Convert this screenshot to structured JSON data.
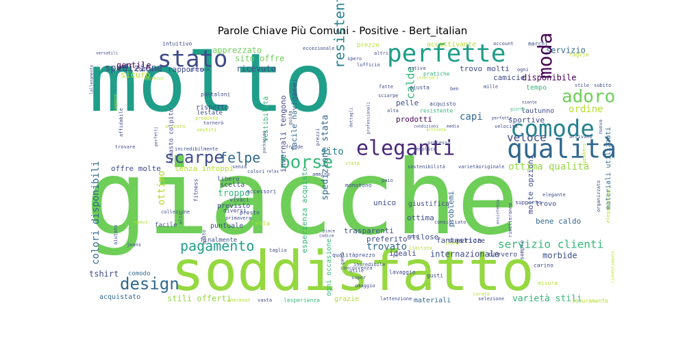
{
  "chart_data": {
    "type": "wordcloud",
    "title": "Parole Chiave Più Comuni - Positive - Bert_italian",
    "background": "#ffffff",
    "colormap": "viridis",
    "words": [
      {
        "text": "molto",
        "color": "#1f9e89"
      },
      {
        "text": "giacche",
        "color": "#6ece58"
      },
      {
        "text": "soddisfatto",
        "color": "#95d840"
      },
      {
        "text": "perfette",
        "color": "#1f9e89"
      },
      {
        "text": "stato",
        "color": "#3e4a89"
      },
      {
        "text": "comode",
        "color": "#26828e"
      },
      {
        "text": "qualità",
        "color": "#31688e"
      },
      {
        "text": "eleganti",
        "color": "#482878"
      },
      {
        "text": "borse",
        "color": "#35b779"
      },
      {
        "text": "scarpe",
        "color": "#3e4a89"
      },
      {
        "text": "felpe",
        "color": "#31688e"
      },
      {
        "text": "moda",
        "color": "#440154"
      },
      {
        "text": "adoro",
        "color": "#6ece58"
      },
      {
        "text": "design",
        "color": "#31688e"
      },
      {
        "text": "pagamento",
        "color": "#1f9e89"
      },
      {
        "text": "resistenti",
        "color": "#26828e"
      },
      {
        "text": "spedizione",
        "color": "#3e4a89"
      },
      {
        "text": "servizio",
        "color": "#31688e"
      },
      {
        "text": "apprezzato",
        "color": "#6ece58"
      },
      {
        "text": "gentile",
        "color": "#440154"
      },
      {
        "text": "rapporto",
        "color": "#3e4a89"
      },
      {
        "text": "sito offre",
        "color": "#6ece58"
      },
      {
        "text": "ricevuto",
        "color": "#3e4a89"
      },
      {
        "text": "capi",
        "color": "#31688e"
      },
      {
        "text": "calde",
        "color": "#35b779"
      },
      {
        "text": "veloce",
        "color": "#3e4a89"
      },
      {
        "text": "servizio clienti",
        "color": "#35b779"
      },
      {
        "text": "ottima qualità",
        "color": "#95d840"
      },
      {
        "text": "colori disponibili",
        "color": "#31688e"
      },
      {
        "text": "trovato",
        "color": "#31688e"
      },
      {
        "text": "sito",
        "color": "#26828e"
      },
      {
        "text": "ottimo",
        "color": "#b5de2b"
      },
      {
        "text": "troppo",
        "color": "#35b779"
      },
      {
        "text": "tshirt",
        "color": "#3e4a89"
      },
      {
        "text": "disponibile",
        "color": "#440154"
      },
      {
        "text": "ordine",
        "color": "#b5de2b"
      },
      {
        "text": "camicie",
        "color": "#3e4a89"
      },
      {
        "text": "prodotti",
        "color": "#440154"
      },
      {
        "text": "pelle",
        "color": "#3e4a89"
      },
      {
        "text": "morbide",
        "color": "#3e4a89"
      },
      {
        "text": "bene caldo",
        "color": "#31688e"
      },
      {
        "text": "varietà stili",
        "color": "#35b779"
      },
      {
        "text": "stili offerti",
        "color": "#95d840"
      },
      {
        "text": "internazionale",
        "color": "#3e4a89"
      },
      {
        "text": "fantastica",
        "color": "#3e4a89"
      },
      {
        "text": "ideali",
        "color": "#3e4a89"
      },
      {
        "text": "offre molte",
        "color": "#3e4a89"
      },
      {
        "text": "senza intoppi",
        "color": "#b5de2b"
      },
      {
        "text": "spedizione stata",
        "color": "#31688e"
      },
      {
        "text": "facile navigare",
        "color": "#31688e"
      },
      {
        "text": "trovo molti",
        "color": "#3e4a89"
      },
      {
        "text": "sportive",
        "color": "#3e4a89"
      },
      {
        "text": "unico",
        "color": "#3e4a89"
      },
      {
        "text": "ottima",
        "color": "#3e4a89"
      },
      {
        "text": "comodo",
        "color": "#31688e"
      },
      {
        "text": "acquistato",
        "color": "#31688e"
      },
      {
        "text": "materiali",
        "color": "#31688e"
      },
      {
        "text": "molte opzioni",
        "color": "#3e4a89"
      },
      {
        "text": "materiali utilizzati",
        "color": "#31688e"
      },
      {
        "text": "problemi",
        "color": "#31688e"
      },
      {
        "text": "superiore",
        "color": "#3e4a89"
      },
      {
        "text": "davvero",
        "color": "#3e4a89"
      },
      {
        "text": "rispetto",
        "color": "#3e4a89"
      },
      {
        "text": "invernali tengono",
        "color": "#3e4a89"
      },
      {
        "text": "preferito",
        "color": "#3e4a89"
      },
      {
        "text": "stilose",
        "color": "#3e4a89"
      },
      {
        "text": "trasparenti",
        "color": "#3e4a89"
      },
      {
        "text": "vestibilità",
        "color": "#35b779"
      },
      {
        "text": "giustifica",
        "color": "#3e4a89"
      },
      {
        "text": "tempo",
        "color": "#35b779"
      },
      {
        "text": "lautunno",
        "color": "#3e4a89"
      },
      {
        "text": "previsto",
        "color": "#3e4a89"
      },
      {
        "text": "scelta",
        "color": "#3e4a89"
      },
      {
        "text": "puntuale",
        "color": "#3e4a89"
      },
      {
        "text": "facile",
        "color": "#3e4a89"
      },
      {
        "text": "libero",
        "color": "#3e4a89"
      },
      {
        "text": "lenta",
        "color": "#b5de2b"
      },
      {
        "text": "finalmente",
        "color": "#3e4a89"
      },
      {
        "text": "trovo",
        "color": "#3e4a89"
      },
      {
        "text": "elegante",
        "color": "#3e4a89"
      },
      {
        "text": "sempre",
        "color": "#3e4a89"
      },
      {
        "text": "supporto",
        "color": "#3e4a89"
      },
      {
        "text": "accattivante",
        "color": "#b5de2b"
      },
      {
        "text": "prezzo",
        "color": "#b5de2b"
      },
      {
        "text": "pratiche",
        "color": "#35b779"
      },
      {
        "text": "giusta",
        "color": "#3e4a89"
      },
      {
        "text": "acquisto",
        "color": "#3e4a89"
      },
      {
        "text": "resistente",
        "color": "#35b779"
      },
      {
        "text": "sicuro",
        "color": "#b5de2b"
      },
      {
        "text": "intuitivo",
        "color": "#3e4a89"
      },
      {
        "text": "contento",
        "color": "#3e4a89"
      },
      {
        "text": "pantaloni",
        "color": "#3e4a89"
      },
      {
        "text": "rimasto colpito",
        "color": "#3e4a89"
      },
      {
        "text": "lestate",
        "color": "#3e4a89"
      },
      {
        "text": "esperienza acquisto",
        "color": "#35b779"
      },
      {
        "text": "ogni occasione",
        "color": "#35b779"
      },
      {
        "text": "grazie",
        "color": "#b5de2b"
      },
      {
        "text": "monotono",
        "color": "#3e4a89"
      },
      {
        "text": "vivaci",
        "color": "#3e4a89"
      },
      {
        "text": "diversi",
        "color": "#3e4a89"
      },
      {
        "text": "accessori",
        "color": "#3e4a89"
      },
      {
        "text": "presto",
        "color": "#3e4a89"
      },
      {
        "text": "fitness",
        "color": "#3e4a89"
      },
      {
        "text": "qualitàprezzo",
        "color": "#3e4a89"
      },
      {
        "text": "lavaggio",
        "color": "#3e4a89"
      },
      {
        "text": "gusti",
        "color": "#3e4a89"
      },
      {
        "text": "curato",
        "color": "#b5de2b"
      },
      {
        "text": "checkout",
        "color": "#b5de2b"
      },
      {
        "text": "vasta",
        "color": "#3e4a89"
      },
      {
        "text": "lesperienza",
        "color": "#35b779"
      },
      {
        "text": "lattenzione",
        "color": "#3e4a89"
      },
      {
        "text": "selezione",
        "color": "#3e4a89"
      },
      {
        "text": "sicuramente",
        "color": "#b5de2b"
      },
      {
        "text": "carino",
        "color": "#3e4a89"
      },
      {
        "text": "misura",
        "color": "#b5de2b"
      },
      {
        "text": "marchi",
        "color": "#3e4a89"
      },
      {
        "text": "account",
        "color": "#3e4a89"
      },
      {
        "text": "taglie",
        "color": "#b5de2b"
      },
      {
        "text": "subito",
        "color": "#3e4a89"
      },
      {
        "text": "stile",
        "color": "#3e4a89"
      },
      {
        "text": "arrivato",
        "color": "#3e4a89"
      },
      {
        "text": "nuova",
        "color": "#3e4a89"
      },
      {
        "text": "taglia",
        "color": "#3e4a89"
      },
      {
        "text": "codice",
        "color": "#3e4a89"
      },
      {
        "text": "piace",
        "color": "#3e4a89"
      },
      {
        "text": "jeans",
        "color": "#3e4a89"
      },
      {
        "text": "aiutato",
        "color": "#3e4a89"
      },
      {
        "text": "collezione",
        "color": "#3e4a89"
      },
      {
        "text": "nuovi",
        "color": "#b5de2b"
      },
      {
        "text": "alti",
        "color": "#3e4a89"
      },
      {
        "text": "primavera",
        "color": "#3e4a89"
      },
      {
        "text": "amato",
        "color": "#3e4a89"
      },
      {
        "text": "utile",
        "color": "#3e4a89"
      },
      {
        "text": "super",
        "color": "#3e4a89"
      },
      {
        "text": "omaggio",
        "color": "#3e4a89"
      },
      {
        "text": "incredibile",
        "color": "#3e4a89"
      },
      {
        "text": "concorrenza",
        "color": "#3e4a89"
      },
      {
        "text": "reso",
        "color": "#3e4a89"
      },
      {
        "text": "consigliato",
        "color": "#3e4a89"
      },
      {
        "text": "rimetteranno",
        "color": "#3e4a89"
      },
      {
        "text": "assistenza",
        "color": "#3e4a89"
      },
      {
        "text": "sneakers",
        "color": "#b5de2b"
      },
      {
        "text": "organizzato",
        "color": "#3e4a89"
      },
      {
        "text": "stata",
        "color": "#b5de2b"
      },
      {
        "text": "sostenibilità",
        "color": "#3e4a89"
      },
      {
        "text": "varietàoriginale",
        "color": "#3e4a89"
      },
      {
        "text": "paio",
        "color": "#3e4a89"
      },
      {
        "text": "ammiro",
        "color": "#3e4a89"
      },
      {
        "text": "colori",
        "color": "#3e4a89"
      },
      {
        "text": "relax",
        "color": "#3e4a89"
      },
      {
        "text": "senza",
        "color": "#3e4a89"
      },
      {
        "text": "fredde",
        "color": "#3e4a89"
      },
      {
        "text": "semplice",
        "color": "#3e4a89"
      },
      {
        "text": "processo",
        "color": "#3e4a89"
      },
      {
        "text": "trovare",
        "color": "#3e4a89"
      },
      {
        "text": "incredibilmente",
        "color": "#3e4a89"
      },
      {
        "text": "tornerò",
        "color": "#3e4a89"
      },
      {
        "text": "vestiti",
        "color": "#b5de2b"
      },
      {
        "text": "prodotto",
        "color": "#b5de2b"
      },
      {
        "text": "sincero",
        "color": "#b5de2b"
      },
      {
        "text": "perfetti",
        "color": "#3e4a89"
      },
      {
        "text": "affidabile",
        "color": "#3e4a89"
      },
      {
        "text": "leggere",
        "color": "#b5de2b"
      },
      {
        "text": "lallenamento",
        "color": "#3e4a89"
      },
      {
        "text": "versatili",
        "color": "#3e4a89"
      },
      {
        "text": "apprezzo",
        "color": "#b5de2b"
      },
      {
        "text": "giornate",
        "color": "#3e4a89"
      },
      {
        "text": "tessuti",
        "color": "#3e4a89"
      },
      {
        "text": "eccezionale",
        "color": "#3e4a89"
      },
      {
        "text": "altri",
        "color": "#3e4a89"
      },
      {
        "text": "lufficio",
        "color": "#3e4a89"
      },
      {
        "text": "spero",
        "color": "#3e4a89"
      },
      {
        "text": "estiva",
        "color": "#3e4a89"
      },
      {
        "text": "invernali",
        "color": "#b5de2b"
      },
      {
        "text": "fatte",
        "color": "#3e4a89"
      },
      {
        "text": "sciarpe",
        "color": "#3e4a89"
      },
      {
        "text": "alta",
        "color": "#3e4a89"
      },
      {
        "text": "mille",
        "color": "#3e4a89"
      },
      {
        "text": "ogni",
        "color": "#3e4a89"
      },
      {
        "text": "ben",
        "color": "#3e4a89"
      },
      {
        "text": "giorno",
        "color": "#35b779"
      },
      {
        "text": "perfetta",
        "color": "#3e4a89"
      },
      {
        "text": "niente",
        "color": "#3e4a89"
      },
      {
        "text": "condizioni",
        "color": "#3e4a89"
      },
      {
        "text": "velocità",
        "color": "#3e4a89"
      },
      {
        "text": "arrivata",
        "color": "#b5de2b"
      },
      {
        "text": "media",
        "color": "#3e4a89"
      },
      {
        "text": "professionali",
        "color": "#3e4a89"
      },
      {
        "text": "dettagli",
        "color": "#3e4a89"
      },
      {
        "text": "packaging",
        "color": "#3e4a89"
      },
      {
        "text": "guida",
        "color": "#3e4a89"
      },
      {
        "text": "prezzi",
        "color": "#3e4a89"
      },
      {
        "text": "sconto",
        "color": "#b5de2b"
      },
      {
        "text": "limitata",
        "color": "#b5de2b"
      },
      {
        "text": "po",
        "color": "#3e4a89"
      },
      {
        "text": "eleganissime",
        "color": "#b5de2b"
      },
      {
        "text": "linvestimento",
        "color": "#b5de2b"
      },
      {
        "text": "gamma",
        "color": "#3e4a89"
      }
    ]
  }
}
